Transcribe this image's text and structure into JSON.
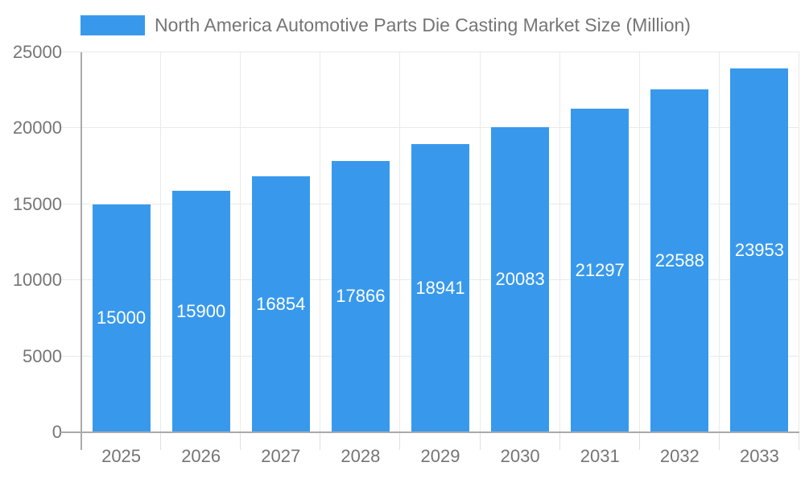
{
  "legend": {
    "label": "North America Automotive Parts Die Casting Market Size (Million)"
  },
  "colors": {
    "bar": "#3899EC",
    "axis": "#AAAAAA",
    "grid": "#EAEAEA",
    "tick": "#E0E0E0",
    "text": "#757575",
    "value_label": "#FFFFFF"
  },
  "chart_data": {
    "type": "bar",
    "title": "North America Automotive Parts Die Casting Market Size (Million)",
    "categories": [
      "2025",
      "2026",
      "2027",
      "2028",
      "2029",
      "2030",
      "2031",
      "2032",
      "2033"
    ],
    "values": [
      15000,
      15900,
      16854,
      17866,
      18941,
      20083,
      21297,
      22588,
      23953
    ],
    "xlabel": "",
    "ylabel": "",
    "ylim": [
      0,
      25000
    ],
    "yticks": [
      0,
      5000,
      10000,
      15000,
      20000,
      25000
    ],
    "grid": true,
    "legend_position": "top",
    "value_labels": "centered-inside-bars"
  }
}
